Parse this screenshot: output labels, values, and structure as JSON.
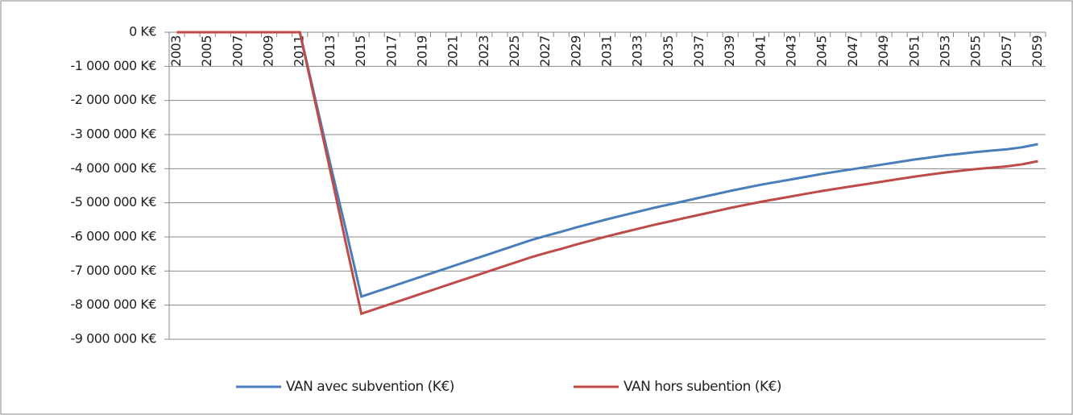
{
  "chart_data": {
    "type": "line",
    "categories": [
      "2003",
      null,
      "2005",
      null,
      "2007",
      null,
      "2009",
      null,
      "2011",
      null,
      "2013",
      null,
      "2015",
      null,
      "2017",
      null,
      "2019",
      null,
      "2021",
      null,
      "2023",
      null,
      "2025",
      null,
      "2027",
      null,
      "2029",
      null,
      "2031",
      null,
      "2033",
      null,
      "2035",
      null,
      "2037",
      null,
      "2039",
      null,
      "2041",
      null,
      "2043",
      null,
      "2045",
      null,
      "2047",
      null,
      "2049",
      null,
      "2051",
      null,
      "2053",
      null,
      "2055",
      null,
      "2057",
      null,
      "2059"
    ],
    "series": [
      {
        "name": "VAN  avec subvention (K€)",
        "color": "#4a7ebb",
        "values": [
          0,
          0,
          0,
          0,
          0,
          0,
          0,
          0,
          0,
          -1950000,
          -3900000,
          -5800000,
          -7750000,
          -7600000,
          -7450000,
          -7300000,
          -7150000,
          -7000000,
          -6850000,
          -6700000,
          -6550000,
          -6400000,
          -6250000,
          -6100000,
          -5970000,
          -5850000,
          -5720000,
          -5600000,
          -5480000,
          -5370000,
          -5260000,
          -5150000,
          -5050000,
          -4950000,
          -4850000,
          -4750000,
          -4650000,
          -4560000,
          -4470000,
          -4390000,
          -4310000,
          -4230000,
          -4150000,
          -4080000,
          -4010000,
          -3940000,
          -3870000,
          -3800000,
          -3730000,
          -3670000,
          -3610000,
          -3560000,
          -3510000,
          -3470000,
          -3430000,
          -3370000,
          -3280000
        ]
      },
      {
        "name": "VAN hors subention (K€)",
        "color": "#be4b48",
        "values": [
          0,
          0,
          0,
          0,
          0,
          0,
          0,
          0,
          0,
          -2050000,
          -4100000,
          -6200000,
          -8250000,
          -8100000,
          -7950000,
          -7800000,
          -7650000,
          -7500000,
          -7350000,
          -7200000,
          -7050000,
          -6900000,
          -6750000,
          -6600000,
          -6470000,
          -6350000,
          -6220000,
          -6100000,
          -5980000,
          -5870000,
          -5760000,
          -5650000,
          -5550000,
          -5450000,
          -5350000,
          -5250000,
          -5150000,
          -5060000,
          -4970000,
          -4890000,
          -4810000,
          -4730000,
          -4650000,
          -4580000,
          -4510000,
          -4440000,
          -4370000,
          -4300000,
          -4230000,
          -4170000,
          -4110000,
          -4060000,
          -4010000,
          -3970000,
          -3930000,
          -3870000,
          -3780000
        ]
      }
    ],
    "ylim": [
      -9000000,
      0
    ],
    "yticks": [
      {
        "value": 0,
        "label": "0 K€"
      },
      {
        "value": -1000000,
        "label": "-1 000 000 K€"
      },
      {
        "value": -2000000,
        "label": "-2 000 000 K€"
      },
      {
        "value": -3000000,
        "label": "-3 000 000 K€"
      },
      {
        "value": -4000000,
        "label": "-4 000 000 K€"
      },
      {
        "value": -5000000,
        "label": "-5 000 000 K€"
      },
      {
        "value": -6000000,
        "label": "-6 000 000 K€"
      },
      {
        "value": -7000000,
        "label": "-7 000 000 K€"
      },
      {
        "value": -8000000,
        "label": "-8 000 000 K€"
      },
      {
        "value": -9000000,
        "label": "-9 000 000 K€"
      }
    ],
    "grid": true,
    "legend": "bottom"
  }
}
